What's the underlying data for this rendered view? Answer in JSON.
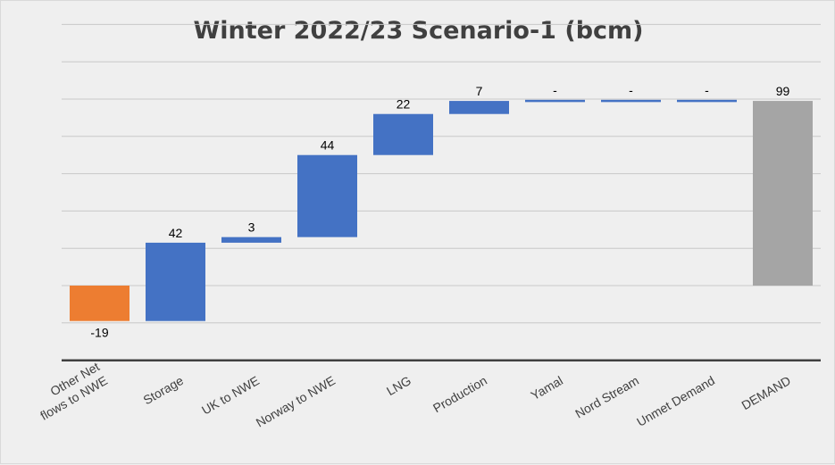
{
  "chart_data": {
    "type": "bar",
    "subtype": "waterfall",
    "title": "Winter 2022/23 Scenario-1 (bcm)",
    "xlabel": "",
    "ylabel": "",
    "grid": true,
    "legend": "none",
    "categories": [
      [
        "Other Net",
        "flows to NWE"
      ],
      [
        "Storage"
      ],
      [
        "UK to NWE"
      ],
      [
        "Norway to NWE"
      ],
      [
        "LNG"
      ],
      [
        "Production"
      ],
      [
        "Yamal"
      ],
      [
        "Nord Stream"
      ],
      [
        "Unmet Demand"
      ],
      [
        "DEMAND"
      ]
    ],
    "values": [
      -19,
      42,
      3,
      44,
      22,
      7,
      0,
      0,
      0,
      99
    ],
    "labels": [
      "-19",
      "42",
      "3",
      "44",
      "22",
      "7",
      "-",
      "-",
      "-",
      "99"
    ],
    "total_index": 9,
    "ylim": [
      -20,
      140
    ],
    "ytick_step": 20,
    "colors": {
      "decrease": "#ed7d31",
      "increase": "#4472c4",
      "total": "#a5a5a5",
      "grid": "#c8c8c8",
      "axis": "#404040"
    }
  }
}
